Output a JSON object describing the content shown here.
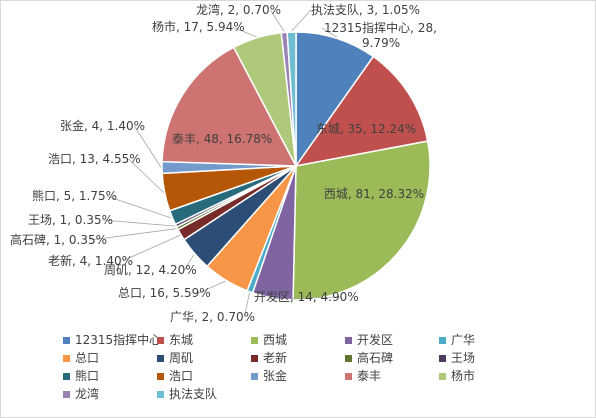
{
  "chart_data": {
    "type": "pie",
    "title": "",
    "slices": [
      {
        "name": "12315指挥中心",
        "value": 28,
        "percent": "9.79%",
        "color": "#4f81bd"
      },
      {
        "name": "东城",
        "value": 35,
        "percent": "12.24%",
        "color": "#c0504d"
      },
      {
        "name": "西城",
        "value": 81,
        "percent": "28.32%",
        "color": "#9bbb59"
      },
      {
        "name": "开发区",
        "value": 14,
        "percent": "4.90%",
        "color": "#8064a2"
      },
      {
        "name": "广华",
        "value": 2,
        "percent": "0.70%",
        "color": "#4bacc6"
      },
      {
        "name": "总口",
        "value": 16,
        "percent": "5.59%",
        "color": "#f79646"
      },
      {
        "name": "周矶",
        "value": 12,
        "percent": "4.20%",
        "color": "#2c4d75"
      },
      {
        "name": "老新",
        "value": 4,
        "percent": "1.40%",
        "color": "#772c2a"
      },
      {
        "name": "高石碑",
        "value": 1,
        "percent": "0.35%",
        "color": "#5f7530"
      },
      {
        "name": "王场",
        "value": 1,
        "percent": "0.35%",
        "color": "#4d3b62"
      },
      {
        "name": "熊口",
        "value": 5,
        "percent": "1.75%",
        "color": "#276a7c"
      },
      {
        "name": "浩口",
        "value": 13,
        "percent": "4.55%",
        "color": "#b65708"
      },
      {
        "name": "张金",
        "value": 4,
        "percent": "1.40%",
        "color": "#729aca"
      },
      {
        "name": "泰丰",
        "value": 48,
        "percent": "16.78%",
        "color": "#cd7371"
      },
      {
        "name": "杨市",
        "value": 17,
        "percent": "5.94%",
        "color": "#afc97a"
      },
      {
        "name": "龙湾",
        "value": 2,
        "percent": "0.70%",
        "color": "#9983b5"
      },
      {
        "name": "执法支队",
        "value": 3,
        "percent": "1.05%",
        "color": "#6fbdd1"
      }
    ],
    "legend_position": "bottom"
  }
}
